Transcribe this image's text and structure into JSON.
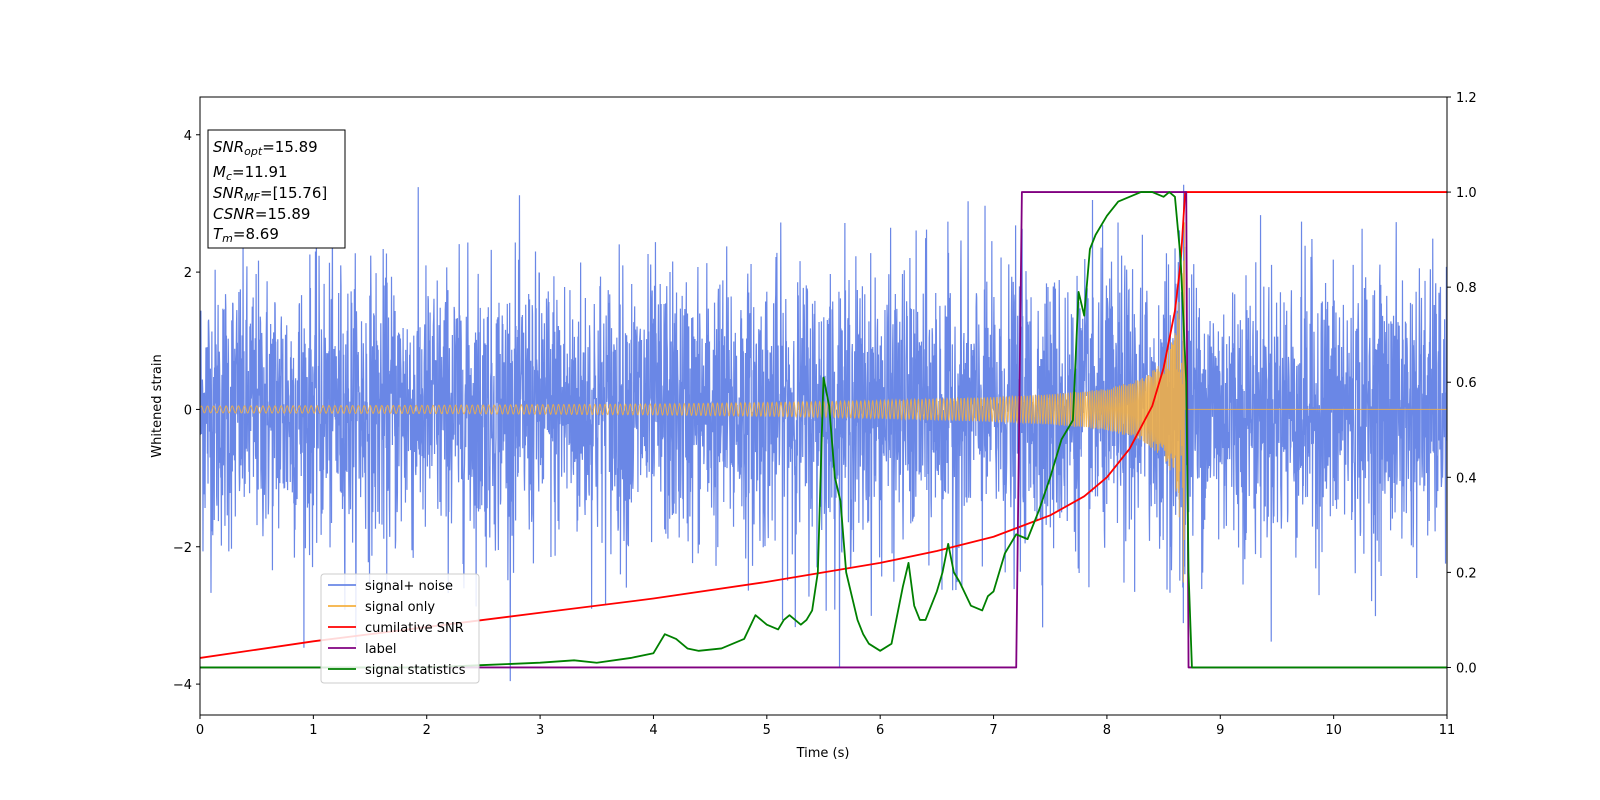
{
  "chart_data": {
    "type": "line",
    "xlabel": "Time (s)",
    "ylabel": "Whitened strain",
    "xlim": [
      0,
      11
    ],
    "ylim_left": [
      -4.45,
      4.55
    ],
    "ylim_right": [
      -0.1,
      1.2
    ],
    "x_ticks": [
      0,
      1,
      2,
      3,
      4,
      5,
      6,
      7,
      8,
      9,
      10,
      11
    ],
    "y_left_ticks": [
      -4,
      -2,
      0,
      2,
      4
    ],
    "y_right_ticks": [
      "0.0",
      "0.2",
      "0.4",
      "0.6",
      "0.8",
      "1.0",
      "1.2"
    ],
    "grid": false,
    "legend_position": "lower-left",
    "annotation": {
      "lines": [
        {
          "sym": "SNR",
          "sub": "opt",
          "value": "=15.89"
        },
        {
          "sym": "M",
          "sub": "c",
          "value": "=11.91"
        },
        {
          "sym": "SNR",
          "sub": "MF",
          "value": "=[15.76]"
        },
        {
          "sym": "CSNR",
          "sub": "",
          "value": "=15.89"
        },
        {
          "sym": "T",
          "sub": "m",
          "value": "=8.69"
        }
      ]
    },
    "series": [
      {
        "name": "signal+ noise",
        "axis": "left",
        "color": "#6a87e6",
        "description_values": {
          "noise_std": 1.0,
          "time_range": [
            0,
            11
          ]
        }
      },
      {
        "name": "signal only",
        "axis": "left",
        "color": "#f5b041",
        "envelope": {
          "x": [
            0,
            2,
            4,
            5,
            6,
            7,
            7.5,
            8,
            8.3,
            8.5,
            8.6,
            8.65,
            8.69,
            8.72,
            11
          ],
          "amp": [
            0.05,
            0.06,
            0.08,
            0.1,
            0.13,
            0.18,
            0.22,
            0.3,
            0.45,
            0.7,
            1.1,
            1.8,
            3.0,
            0.0,
            0.0
          ]
        }
      },
      {
        "name": "cumilative SNR",
        "axis": "right",
        "color": "#ff0000",
        "x": [
          0,
          1,
          2,
          3,
          4,
          5,
          6,
          6.5,
          7,
          7.5,
          7.8,
          8,
          8.2,
          8.4,
          8.5,
          8.6,
          8.65,
          8.69,
          11
        ],
        "y": [
          0.02,
          0.055,
          0.085,
          0.115,
          0.145,
          0.18,
          0.22,
          0.245,
          0.275,
          0.32,
          0.36,
          0.4,
          0.46,
          0.55,
          0.63,
          0.75,
          0.85,
          1.0,
          1.0
        ]
      },
      {
        "name": "label",
        "axis": "right",
        "color": "#800080",
        "x": [
          0,
          7.2,
          7.25,
          8.7,
          8.72,
          11
        ],
        "y": [
          0,
          0,
          1,
          1,
          0,
          0
        ]
      },
      {
        "name": "signal statistics",
        "axis": "right",
        "color": "#008000",
        "x": [
          0,
          1,
          2,
          2.5,
          3,
          3.3,
          3.5,
          3.8,
          4,
          4.1,
          4.2,
          4.3,
          4.4,
          4.6,
          4.8,
          4.9,
          5.0,
          5.1,
          5.15,
          5.2,
          5.3,
          5.35,
          5.4,
          5.45,
          5.5,
          5.55,
          5.6,
          5.65,
          5.7,
          5.75,
          5.8,
          5.85,
          5.9,
          6.0,
          6.1,
          6.2,
          6.25,
          6.3,
          6.35,
          6.4,
          6.5,
          6.55,
          6.6,
          6.65,
          6.7,
          6.8,
          6.9,
          6.95,
          7.0,
          7.1,
          7.2,
          7.3,
          7.4,
          7.5,
          7.6,
          7.65,
          7.7,
          7.75,
          7.8,
          7.85,
          7.9,
          8.0,
          8.1,
          8.2,
          8.3,
          8.4,
          8.5,
          8.55,
          8.6,
          8.65,
          8.7,
          8.72,
          8.75,
          8.8,
          9,
          10,
          11
        ],
        "y": [
          0.0,
          0.0,
          0.0,
          0.005,
          0.01,
          0.015,
          0.01,
          0.02,
          0.03,
          0.07,
          0.06,
          0.04,
          0.035,
          0.04,
          0.06,
          0.11,
          0.09,
          0.08,
          0.1,
          0.11,
          0.09,
          0.1,
          0.12,
          0.2,
          0.61,
          0.55,
          0.4,
          0.35,
          0.2,
          0.15,
          0.1,
          0.07,
          0.05,
          0.035,
          0.05,
          0.17,
          0.22,
          0.13,
          0.1,
          0.1,
          0.16,
          0.2,
          0.26,
          0.2,
          0.18,
          0.13,
          0.12,
          0.15,
          0.16,
          0.24,
          0.28,
          0.27,
          0.33,
          0.4,
          0.48,
          0.5,
          0.52,
          0.79,
          0.74,
          0.88,
          0.91,
          0.95,
          0.98,
          0.99,
          1.0,
          1.0,
          0.99,
          1.0,
          0.99,
          0.86,
          0.6,
          0.2,
          0.0,
          0.0,
          0.0,
          0.0,
          0.0
        ]
      }
    ]
  }
}
